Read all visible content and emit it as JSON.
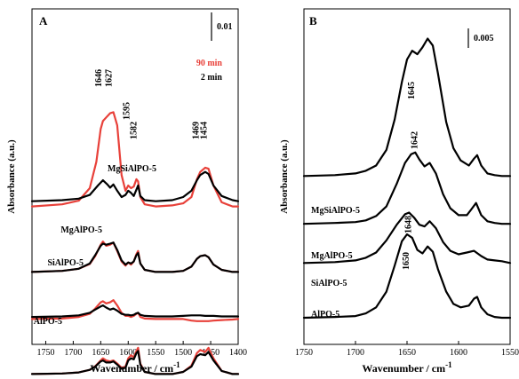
{
  "chart_data": [
    {
      "type": "line",
      "panel_label": "A",
      "xlabel": "Wavenumber / cm",
      "xlabel_sup": "-1",
      "ylabel": "Absorbance (a.u.)",
      "xlim": [
        1775,
        1400
      ],
      "x_ticks": [
        1750,
        1700,
        1650,
        1600,
        1550,
        1500,
        1450,
        1400
      ],
      "scale_bar_label": "0.01",
      "scale_bar_value": 0.01,
      "legend": [
        {
          "label": "90 min",
          "color": "#e8413a"
        },
        {
          "label": "2 min",
          "color": "#000000"
        }
      ],
      "peak_labels": [
        "1646",
        "1627",
        "1595",
        "1582",
        "1469",
        "1454"
      ],
      "peak_positions": [
        1646,
        1627,
        1595,
        1582,
        1469,
        1454
      ],
      "sample_labels": [
        "MgSiAlPO-5",
        "MgAlPO-5",
        "SiAlPO-5",
        "AlPO-5"
      ],
      "series": [
        {
          "name": "MgSiAlPO-5",
          "time": "90 min",
          "color": "#e8413a",
          "baseline": 0.026,
          "x": [
            1775,
            1720,
            1690,
            1670,
            1658,
            1650,
            1646,
            1640,
            1633,
            1627,
            1620,
            1612,
            1605,
            1600,
            1595,
            1590,
            1585,
            1582,
            1578,
            1570,
            1550,
            1520,
            1500,
            1485,
            1475,
            1469,
            1460,
            1454,
            1445,
            1430,
            1410,
            1400
          ],
          "y": [
            0.0,
            0.0004,
            0.0011,
            0.0035,
            0.0085,
            0.0148,
            0.0163,
            0.017,
            0.0178,
            0.018,
            0.0155,
            0.006,
            0.003,
            0.004,
            0.0035,
            0.0038,
            0.0052,
            0.0048,
            0.0018,
            0.0004,
            0.0,
            0.0002,
            0.0006,
            0.0018,
            0.0052,
            0.0066,
            0.0074,
            0.0072,
            0.004,
            0.0008,
            0.0,
            0.0
          ]
        },
        {
          "name": "MgSiAlPO-5",
          "time": "2 min",
          "color": "#000000",
          "baseline": 0.026,
          "x": [
            1775,
            1720,
            1690,
            1670,
            1655,
            1646,
            1638,
            1633,
            1627,
            1620,
            1612,
            1605,
            1600,
            1595,
            1590,
            1585,
            1582,
            1578,
            1570,
            1550,
            1520,
            1500,
            1485,
            1475,
            1469,
            1460,
            1454,
            1445,
            1430,
            1410,
            1400
          ],
          "y": [
            0.001,
            0.0012,
            0.0015,
            0.0022,
            0.004,
            0.005,
            0.0042,
            0.0036,
            0.0042,
            0.003,
            0.0018,
            0.0022,
            0.003,
            0.0026,
            0.002,
            0.0032,
            0.004,
            0.002,
            0.0012,
            0.001,
            0.0012,
            0.0018,
            0.003,
            0.005,
            0.006,
            0.0066,
            0.0062,
            0.004,
            0.002,
            0.0012,
            0.001
          ]
        },
        {
          "name": "MgAlPO-5",
          "time": "90 min",
          "color": "#e8413a",
          "baseline": 0.0135,
          "x": [
            1775,
            1720,
            1690,
            1670,
            1660,
            1650,
            1646,
            1640,
            1633,
            1627,
            1620,
            1612,
            1605,
            1600,
            1595,
            1590,
            1585,
            1582,
            1578,
            1570,
            1550,
            1520,
            1500,
            1485,
            1475,
            1469,
            1460,
            1454,
            1445,
            1430,
            1410,
            1400
          ],
          "y": [
            0.0,
            0.0002,
            0.0006,
            0.0015,
            0.003,
            0.0052,
            0.0058,
            0.005,
            0.0052,
            0.0056,
            0.004,
            0.002,
            0.0012,
            0.0018,
            0.0014,
            0.002,
            0.0034,
            0.004,
            0.0016,
            0.0004,
            0.0,
            0.0,
            0.0002,
            0.001,
            0.0025,
            0.003,
            0.0032,
            0.0028,
            0.0014,
            0.0004,
            0.0,
            0.0
          ]
        },
        {
          "name": "MgAlPO-5",
          "time": "2 min",
          "color": "#000000",
          "baseline": 0.0135,
          "x": [
            1775,
            1720,
            1690,
            1670,
            1660,
            1650,
            1646,
            1640,
            1633,
            1627,
            1620,
            1612,
            1605,
            1600,
            1595,
            1590,
            1585,
            1582,
            1578,
            1570,
            1550,
            1520,
            1500,
            1485,
            1475,
            1469,
            1460,
            1454,
            1445,
            1430,
            1410,
            1400
          ],
          "y": [
            0.0,
            0.0002,
            0.0006,
            0.0016,
            0.0032,
            0.005,
            0.0054,
            0.0052,
            0.0054,
            0.0056,
            0.0042,
            0.0022,
            0.0014,
            0.0018,
            0.0016,
            0.002,
            0.0032,
            0.0036,
            0.0016,
            0.0004,
            0.0,
            0.0,
            0.0002,
            0.001,
            0.0025,
            0.003,
            0.0032,
            0.0028,
            0.0014,
            0.0004,
            0.0,
            0.0
          ]
        },
        {
          "name": "SiAlPO-5",
          "time": "90 min",
          "color": "#e8413a",
          "baseline": 0.0045,
          "x": [
            1775,
            1720,
            1690,
            1670,
            1660,
            1650,
            1646,
            1640,
            1633,
            1627,
            1620,
            1612,
            1605,
            1600,
            1595,
            1590,
            1585,
            1582,
            1578,
            1570,
            1550,
            1520,
            1500,
            1485,
            1475,
            1469,
            1460,
            1454,
            1445,
            1430,
            1410,
            1400
          ],
          "y": [
            0.0,
            0.0001,
            0.0004,
            0.001,
            0.002,
            0.0032,
            0.0034,
            0.003,
            0.0032,
            0.0036,
            0.0026,
            0.0012,
            0.0006,
            0.0006,
            0.0004,
            0.0006,
            0.001,
            0.0012,
            0.0004,
            0.0001,
            0.0,
            0.0,
            0.0,
            -0.0003,
            -0.0004,
            -0.0004,
            -0.0004,
            -0.0004,
            -0.0003,
            -0.0002,
            -0.0001,
            0.0
          ]
        },
        {
          "name": "SiAlPO-5",
          "time": "2 min",
          "color": "#000000",
          "baseline": 0.0045,
          "x": [
            1775,
            1720,
            1690,
            1670,
            1660,
            1650,
            1646,
            1640,
            1633,
            1627,
            1620,
            1612,
            1605,
            1600,
            1595,
            1590,
            1585,
            1582,
            1578,
            1570,
            1550,
            1520,
            1500,
            1485,
            1475,
            1469,
            1460,
            1454,
            1445,
            1430,
            1410,
            1400
          ],
          "y": [
            0.0004,
            0.0005,
            0.0007,
            0.0012,
            0.0018,
            0.0024,
            0.0026,
            0.0022,
            0.0018,
            0.002,
            0.0016,
            0.001,
            0.0008,
            0.0008,
            0.0007,
            0.0008,
            0.0011,
            0.0012,
            0.0008,
            0.0006,
            0.0005,
            0.0005,
            0.0006,
            0.0007,
            0.0007,
            0.0007,
            0.0006,
            0.0006,
            0.0006,
            0.0005,
            0.0005,
            0.0005
          ]
        },
        {
          "name": "AlPO-5",
          "time": "90 min",
          "color": "#e8413a",
          "baseline": -0.006,
          "x": [
            1775,
            1720,
            1690,
            1670,
            1660,
            1650,
            1646,
            1640,
            1633,
            1627,
            1620,
            1612,
            1605,
            1600,
            1595,
            1590,
            1585,
            1582,
            1578,
            1570,
            1550,
            1520,
            1500,
            1485,
            1475,
            1469,
            1460,
            1454,
            1445,
            1430,
            1410,
            1400
          ],
          "y": [
            0.0,
            0.0001,
            0.0003,
            0.0008,
            0.0015,
            0.0026,
            0.003,
            0.0026,
            0.0024,
            0.0026,
            0.002,
            0.0012,
            0.0014,
            0.003,
            0.0036,
            0.0032,
            0.0044,
            0.005,
            0.002,
            0.0004,
            0.0,
            0.0,
            0.0004,
            0.0016,
            0.004,
            0.0046,
            0.0042,
            0.005,
            0.003,
            0.0006,
            0.0,
            0.0
          ]
        },
        {
          "name": "AlPO-5",
          "time": "2 min",
          "color": "#000000",
          "baseline": -0.006,
          "x": [
            1775,
            1720,
            1690,
            1670,
            1660,
            1650,
            1646,
            1640,
            1633,
            1627,
            1620,
            1612,
            1605,
            1600,
            1595,
            1590,
            1585,
            1582,
            1578,
            1570,
            1550,
            1520,
            1500,
            1485,
            1475,
            1469,
            1460,
            1454,
            1445,
            1430,
            1410,
            1400
          ],
          "y": [
            0.0,
            0.0001,
            0.0003,
            0.0008,
            0.0014,
            0.0024,
            0.0026,
            0.0022,
            0.0022,
            0.0024,
            0.0018,
            0.001,
            0.0012,
            0.0026,
            0.003,
            0.0028,
            0.004,
            0.0044,
            0.0018,
            0.0004,
            0.0,
            0.0,
            0.0004,
            0.0014,
            0.0034,
            0.0038,
            0.0036,
            0.0042,
            0.0026,
            0.0006,
            0.0,
            0.0
          ]
        }
      ]
    },
    {
      "type": "line",
      "panel_label": "B",
      "xlabel": "Wavenumber / cm",
      "xlabel_sup": "-1",
      "ylabel": "Absorbance (a.u.)",
      "xlim": [
        1750,
        1550
      ],
      "x_ticks": [
        1750,
        1700,
        1650,
        1600,
        1550
      ],
      "scale_bar_label": "0.005",
      "scale_bar_value": 0.005,
      "peak_labels": [
        "1645",
        "1642",
        "1648",
        "1650"
      ],
      "peak_positions": [
        1645,
        1642,
        1648,
        1650
      ],
      "sample_labels": [
        "MgSiAlPO-5",
        "MgAlPO-5",
        "SiAlPO-5",
        "AlPO-5"
      ],
      "series": [
        {
          "name": "MgSiAlPO-5",
          "color": "#000000",
          "baseline": 0.0165,
          "x": [
            1750,
            1720,
            1700,
            1690,
            1680,
            1670,
            1662,
            1655,
            1650,
            1645,
            1640,
            1635,
            1630,
            1625,
            1620,
            1612,
            1605,
            1598,
            1590,
            1585,
            1582,
            1578,
            1572,
            1565,
            1558,
            1550
          ],
          "y": [
            0.0,
            0.0001,
            0.0003,
            0.0006,
            0.0012,
            0.003,
            0.0065,
            0.0108,
            0.0134,
            0.0144,
            0.014,
            0.0148,
            0.0158,
            0.015,
            0.0118,
            0.0062,
            0.0032,
            0.0018,
            0.0012,
            0.002,
            0.0024,
            0.0012,
            0.0003,
            0.0001,
            0.0,
            0.0
          ]
        },
        {
          "name": "MgAlPO-5",
          "color": "#000000",
          "baseline": 0.011,
          "x": [
            1750,
            1720,
            1700,
            1690,
            1680,
            1670,
            1660,
            1652,
            1646,
            1642,
            1638,
            1633,
            1628,
            1622,
            1615,
            1608,
            1600,
            1592,
            1588,
            1583,
            1578,
            1572,
            1565,
            1558,
            1550
          ],
          "y": [
            0.0,
            0.0001,
            0.0002,
            0.0004,
            0.0009,
            0.002,
            0.0046,
            0.007,
            0.008,
            0.0082,
            0.0074,
            0.0066,
            0.007,
            0.0058,
            0.0034,
            0.0018,
            0.001,
            0.001,
            0.0016,
            0.0024,
            0.001,
            0.0003,
            0.0001,
            0.0,
            0.0
          ]
        },
        {
          "name": "SiAlPO-5",
          "color": "#000000",
          "baseline": 0.0065,
          "x": [
            1750,
            1720,
            1700,
            1690,
            1680,
            1670,
            1660,
            1652,
            1648,
            1643,
            1638,
            1633,
            1628,
            1622,
            1615,
            1608,
            1600,
            1592,
            1585,
            1578,
            1572,
            1565,
            1558,
            1550
          ],
          "y": [
            0.0,
            0.0001,
            0.0003,
            0.0006,
            0.0012,
            0.0026,
            0.0044,
            0.0056,
            0.0058,
            0.0052,
            0.0044,
            0.0042,
            0.0048,
            0.004,
            0.0024,
            0.0014,
            0.001,
            0.0012,
            0.0014,
            0.0008,
            0.0004,
            0.0003,
            0.0002,
            0.0
          ]
        },
        {
          "name": "AlPO-5",
          "color": "#000000",
          "baseline": 0.0002,
          "x": [
            1750,
            1720,
            1700,
            1690,
            1680,
            1670,
            1662,
            1655,
            1650,
            1645,
            1640,
            1635,
            1630,
            1625,
            1620,
            1612,
            1605,
            1598,
            1590,
            1585,
            1582,
            1578,
            1572,
            1565,
            1558,
            1550
          ],
          "y": [
            0.0,
            0.0001,
            0.0002,
            0.0005,
            0.0012,
            0.003,
            0.006,
            0.0088,
            0.0096,
            0.0092,
            0.0078,
            0.0074,
            0.0082,
            0.0076,
            0.0056,
            0.003,
            0.0016,
            0.0012,
            0.0014,
            0.0022,
            0.0024,
            0.0012,
            0.0004,
            0.0001,
            0.0,
            0.0
          ]
        }
      ]
    }
  ]
}
